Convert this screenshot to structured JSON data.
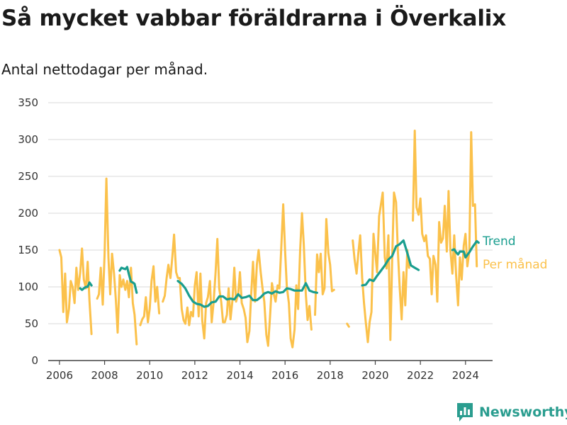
{
  "chart_data": {
    "type": "line",
    "title": "Så mycket vabbar föräldrarna i Överkalix",
    "subtitle": "Antal nettodagar per månad.",
    "xlabel": "",
    "ylabel": "",
    "xlim": [
      2005.5,
      2025.2
    ],
    "ylim": [
      0,
      350
    ],
    "yticks": [
      0,
      50,
      100,
      150,
      200,
      250,
      300,
      350
    ],
    "xticks": [
      2006,
      2008,
      2010,
      2012,
      2014,
      2016,
      2018,
      2020,
      2022,
      2024
    ],
    "grid": true,
    "legend_placement": "right",
    "series": [
      {
        "name": "Per månad",
        "color": "#fbc14b",
        "points": [
          [
            2006.0,
            150
          ],
          [
            2006.08,
            140
          ],
          [
            2006.17,
            66
          ],
          [
            2006.25,
            118
          ],
          [
            2006.33,
            52
          ],
          [
            2006.42,
            70
          ],
          [
            2006.5,
            108
          ],
          [
            2006.58,
            100
          ],
          [
            2006.67,
            78
          ],
          [
            2006.75,
            126
          ],
          [
            2006.83,
            96
          ],
          [
            2006.92,
            120
          ],
          [
            2007.0,
            152
          ],
          [
            2007.08,
            110
          ],
          [
            2007.17,
            98
          ],
          [
            2007.25,
            134
          ],
          [
            2007.33,
            82
          ],
          [
            2007.42,
            36
          ],
          null,
          [
            2007.67,
            84
          ],
          [
            2007.75,
            90
          ],
          [
            2007.83,
            126
          ],
          [
            2007.92,
            76
          ],
          [
            2008.0,
            145
          ],
          [
            2008.08,
            247
          ],
          [
            2008.17,
            140
          ],
          [
            2008.25,
            90
          ],
          [
            2008.33,
            145
          ],
          [
            2008.42,
            118
          ],
          [
            2008.5,
            82
          ],
          [
            2008.58,
            38
          ],
          [
            2008.67,
            116
          ],
          [
            2008.75,
            100
          ],
          [
            2008.83,
            110
          ],
          [
            2008.92,
            96
          ],
          [
            2009.0,
            108
          ],
          [
            2009.08,
            86
          ],
          [
            2009.17,
            126
          ],
          [
            2009.25,
            78
          ],
          [
            2009.33,
            62
          ],
          [
            2009.42,
            22
          ],
          null,
          [
            2009.58,
            48
          ],
          [
            2009.67,
            56
          ],
          [
            2009.75,
            60
          ],
          [
            2009.83,
            86
          ],
          [
            2009.92,
            52
          ],
          [
            2010.0,
            70
          ],
          [
            2010.08,
            108
          ],
          [
            2010.17,
            128
          ],
          [
            2010.25,
            80
          ],
          [
            2010.33,
            100
          ],
          [
            2010.42,
            64
          ],
          null,
          [
            2010.58,
            80
          ],
          [
            2010.67,
            88
          ],
          [
            2010.75,
            112
          ],
          [
            2010.83,
            130
          ],
          [
            2010.92,
            112
          ],
          [
            2011.0,
            140
          ],
          [
            2011.08,
            171
          ],
          [
            2011.17,
            120
          ],
          [
            2011.25,
            112
          ],
          [
            2011.33,
            112
          ],
          [
            2011.42,
            70
          ],
          [
            2011.5,
            55
          ],
          [
            2011.58,
            50
          ],
          [
            2011.67,
            72
          ],
          [
            2011.75,
            48
          ],
          [
            2011.83,
            66
          ],
          [
            2011.92,
            60
          ],
          [
            2012.0,
            102
          ],
          [
            2012.08,
            120
          ],
          [
            2012.17,
            60
          ],
          [
            2012.25,
            118
          ],
          [
            2012.33,
            54
          ],
          [
            2012.42,
            30
          ],
          [
            2012.5,
            78
          ],
          [
            2012.58,
            86
          ],
          [
            2012.67,
            108
          ],
          [
            2012.75,
            52
          ],
          [
            2012.83,
            78
          ],
          [
            2012.92,
            120
          ],
          [
            2013.0,
            165
          ],
          [
            2013.08,
            98
          ],
          [
            2013.17,
            80
          ],
          [
            2013.25,
            52
          ],
          [
            2013.33,
            52
          ],
          [
            2013.42,
            62
          ],
          [
            2013.5,
            98
          ],
          [
            2013.58,
            56
          ],
          [
            2013.67,
            82
          ],
          [
            2013.75,
            126
          ],
          [
            2013.83,
            80
          ],
          [
            2013.92,
            90
          ],
          [
            2014.0,
            120
          ],
          [
            2014.08,
            78
          ],
          [
            2014.17,
            70
          ],
          [
            2014.25,
            58
          ],
          [
            2014.33,
            25
          ],
          [
            2014.42,
            40
          ],
          [
            2014.5,
            90
          ],
          [
            2014.58,
            134
          ],
          [
            2014.67,
            80
          ],
          [
            2014.75,
            130
          ],
          [
            2014.83,
            150
          ],
          [
            2014.92,
            120
          ],
          [
            2015.0,
            98
          ],
          [
            2015.08,
            80
          ],
          [
            2015.17,
            35
          ],
          [
            2015.25,
            20
          ],
          [
            2015.33,
            58
          ],
          [
            2015.42,
            105
          ],
          [
            2015.5,
            90
          ],
          [
            2015.58,
            80
          ],
          [
            2015.67,
            102
          ],
          [
            2015.75,
            98
          ],
          [
            2015.83,
            152
          ],
          [
            2015.92,
            212
          ],
          [
            2016.0,
            150
          ],
          [
            2016.08,
            100
          ],
          [
            2016.17,
            78
          ],
          [
            2016.25,
            30
          ],
          [
            2016.33,
            18
          ],
          [
            2016.42,
            42
          ],
          [
            2016.5,
            102
          ],
          [
            2016.58,
            70
          ],
          [
            2016.67,
            150
          ],
          [
            2016.75,
            200
          ],
          [
            2016.83,
            158
          ],
          [
            2016.92,
            90
          ],
          [
            2017.0,
            55
          ],
          [
            2017.08,
            74
          ],
          [
            2017.17,
            42
          ],
          null,
          [
            2017.33,
            62
          ],
          [
            2017.42,
            144
          ],
          [
            2017.5,
            120
          ],
          [
            2017.58,
            145
          ],
          [
            2017.67,
            90
          ],
          [
            2017.75,
            98
          ],
          [
            2017.83,
            192
          ],
          [
            2017.92,
            146
          ],
          [
            2018.0,
            130
          ],
          [
            2018.08,
            94
          ],
          [
            2018.17,
            96
          ],
          null,
          [
            2018.75,
            50
          ],
          [
            2018.83,
            46
          ],
          null,
          [
            2019.0,
            163
          ],
          [
            2019.08,
            138
          ],
          [
            2019.17,
            118
          ],
          [
            2019.25,
            146
          ],
          [
            2019.33,
            170
          ],
          [
            2019.42,
            112
          ],
          [
            2019.5,
            78
          ],
          [
            2019.58,
            52
          ],
          [
            2019.67,
            25
          ],
          [
            2019.75,
            52
          ],
          [
            2019.83,
            66
          ],
          [
            2019.92,
            172
          ],
          [
            2020.0,
            146
          ],
          [
            2020.08,
            120
          ],
          [
            2020.17,
            196
          ],
          [
            2020.25,
            212
          ],
          [
            2020.33,
            228
          ],
          [
            2020.42,
            140
          ],
          [
            2020.5,
            125
          ],
          [
            2020.58,
            170
          ],
          [
            2020.67,
            28
          ],
          [
            2020.75,
            140
          ],
          [
            2020.83,
            228
          ],
          [
            2020.92,
            215
          ],
          [
            2021.0,
            150
          ],
          [
            2021.08,
            100
          ],
          [
            2021.17,
            56
          ],
          [
            2021.25,
            120
          ],
          [
            2021.33,
            75
          ],
          [
            2021.42,
            150
          ],
          [
            2021.5,
            126
          ],
          null,
          [
            2021.67,
            190
          ],
          [
            2021.75,
            312
          ],
          [
            2021.83,
            208
          ],
          [
            2021.92,
            198
          ],
          [
            2022.0,
            220
          ],
          [
            2022.08,
            172
          ],
          [
            2022.17,
            162
          ],
          [
            2022.25,
            170
          ],
          [
            2022.33,
            142
          ],
          [
            2022.42,
            138
          ],
          [
            2022.5,
            90
          ],
          [
            2022.58,
            142
          ],
          [
            2022.67,
            130
          ],
          [
            2022.75,
            80
          ],
          [
            2022.83,
            188
          ],
          [
            2022.92,
            160
          ],
          [
            2023.0,
            166
          ],
          [
            2023.08,
            210
          ],
          [
            2023.17,
            148
          ],
          [
            2023.25,
            230
          ],
          [
            2023.33,
            150
          ],
          [
            2023.42,
            118
          ],
          [
            2023.5,
            170
          ],
          [
            2023.58,
            118
          ],
          [
            2023.67,
            75
          ],
          [
            2023.75,
            140
          ],
          [
            2023.83,
            110
          ],
          [
            2023.92,
            156
          ],
          [
            2024.0,
            172
          ],
          [
            2024.08,
            128
          ],
          [
            2024.17,
            148
          ],
          [
            2024.25,
            310
          ],
          [
            2024.33,
            210
          ],
          [
            2024.42,
            212
          ],
          [
            2024.5,
            128
          ]
        ]
      },
      {
        "name": "Trend",
        "color": "#1a9e8f",
        "points": [
          [
            2006.92,
            98
          ],
          [
            2007.0,
            96
          ],
          [
            2007.08,
            98
          ],
          [
            2007.17,
            100
          ],
          [
            2007.25,
            100
          ],
          [
            2007.33,
            106
          ],
          [
            2007.42,
            102
          ],
          null,
          [
            2008.67,
            122
          ],
          [
            2008.75,
            126
          ],
          [
            2008.83,
            125
          ],
          [
            2008.92,
            124
          ],
          [
            2009.0,
            127
          ],
          [
            2009.08,
            117
          ],
          [
            2009.17,
            107
          ],
          [
            2009.25,
            106
          ],
          [
            2009.33,
            104
          ],
          [
            2009.42,
            92
          ],
          null,
          [
            2011.25,
            108
          ],
          [
            2011.42,
            104
          ],
          [
            2011.58,
            98
          ],
          [
            2011.75,
            88
          ],
          [
            2011.92,
            80
          ],
          [
            2012.08,
            77
          ],
          [
            2012.25,
            76
          ],
          [
            2012.42,
            73
          ],
          [
            2012.58,
            74
          ],
          [
            2012.75,
            79
          ],
          [
            2012.92,
            80
          ],
          [
            2013.08,
            87
          ],
          [
            2013.25,
            87
          ],
          [
            2013.42,
            83
          ],
          [
            2013.58,
            84
          ],
          [
            2013.75,
            83
          ],
          [
            2013.92,
            90
          ],
          [
            2014.08,
            85
          ],
          [
            2014.25,
            86
          ],
          [
            2014.42,
            88
          ],
          [
            2014.58,
            82
          ],
          [
            2014.75,
            82
          ],
          [
            2014.92,
            86
          ],
          [
            2015.08,
            91
          ],
          [
            2015.25,
            93
          ],
          [
            2015.42,
            91
          ],
          [
            2015.58,
            94
          ],
          [
            2015.75,
            92
          ],
          [
            2015.92,
            93
          ],
          [
            2016.08,
            98
          ],
          [
            2016.25,
            97
          ],
          [
            2016.42,
            95
          ],
          [
            2016.58,
            95
          ],
          [
            2016.75,
            95
          ],
          [
            2016.92,
            105
          ],
          [
            2017.08,
            95
          ],
          [
            2017.25,
            93
          ],
          [
            2017.42,
            92
          ],
          null,
          [
            2019.42,
            102
          ],
          [
            2019.58,
            103
          ],
          [
            2019.75,
            110
          ],
          [
            2019.92,
            108
          ],
          [
            2020.08,
            115
          ],
          [
            2020.25,
            122
          ],
          [
            2020.42,
            129
          ],
          [
            2020.58,
            137
          ],
          [
            2020.75,
            142
          ],
          [
            2020.92,
            155
          ],
          [
            2021.08,
            158
          ],
          [
            2021.25,
            163
          ],
          [
            2021.42,
            146
          ],
          [
            2021.58,
            129
          ],
          [
            2021.75,
            126
          ],
          [
            2021.92,
            123
          ],
          null,
          [
            2023.42,
            150
          ],
          [
            2023.5,
            151
          ],
          [
            2023.58,
            147
          ],
          [
            2023.67,
            144
          ],
          [
            2023.75,
            148
          ],
          [
            2023.83,
            148
          ],
          [
            2023.92,
            148
          ],
          [
            2024.0,
            140
          ],
          [
            2024.17,
            147
          ],
          [
            2024.33,
            155
          ],
          [
            2024.5,
            162
          ],
          [
            2024.58,
            160
          ]
        ]
      }
    ]
  },
  "brand": {
    "name": "Newsworthy",
    "logo_icon": "bar-chart-logo-icon",
    "color": "#2a9d8f"
  }
}
